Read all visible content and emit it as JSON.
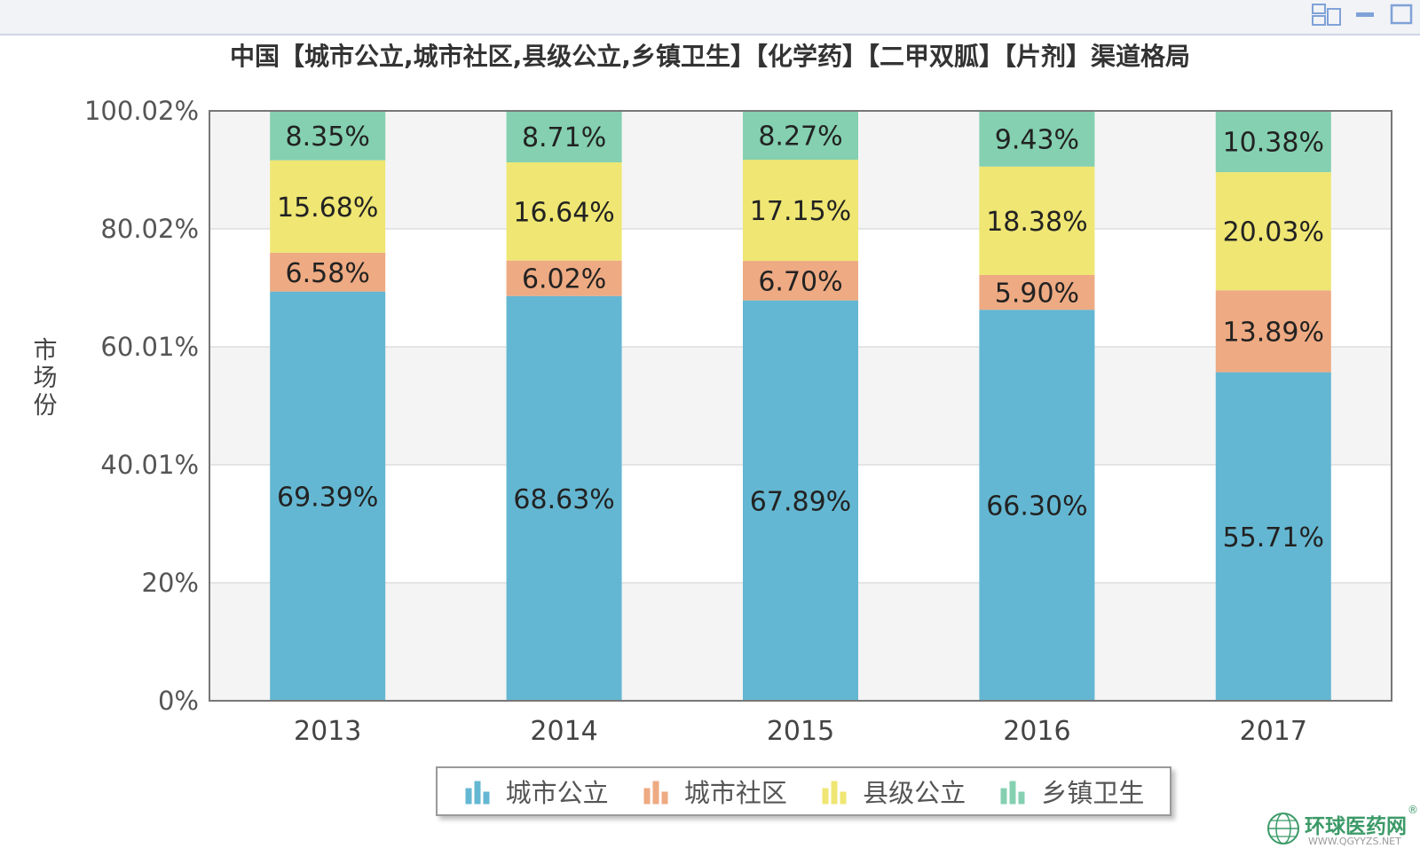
{
  "window": {
    "icons": [
      "window-layout-icon",
      "minimize-icon",
      "maximize-icon"
    ]
  },
  "chart_data": {
    "type": "bar",
    "stacked": true,
    "title": "中国【城市公立,城市社区,县级公立,乡镇卫生】【化学药】【二甲双胍】【片剂】渠道格局",
    "xlabel": "",
    "ylabel": "市场份",
    "ylim": [
      0,
      100.02
    ],
    "yticks": [
      "0%",
      "20%",
      "40.01%",
      "60.01%",
      "80.02%",
      "100.02%"
    ],
    "grid": true,
    "legend_position": "bottom",
    "categories": [
      "2013",
      "2014",
      "2015",
      "2016",
      "2017"
    ],
    "series": [
      {
        "name": "城市公立",
        "color": "#64b7d2",
        "values": [
          69.39,
          68.63,
          67.89,
          66.3,
          55.71
        ],
        "labels": [
          "69.39%",
          "68.63%",
          "67.89%",
          "66.30%",
          "55.71%"
        ]
      },
      {
        "name": "城市社区",
        "color": "#eeaa82",
        "values": [
          6.58,
          6.02,
          6.7,
          5.9,
          13.89
        ],
        "labels": [
          "6.58%",
          "6.02%",
          "6.70%",
          "5.90%",
          "13.89%"
        ]
      },
      {
        "name": "县级公立",
        "color": "#efe673",
        "values": [
          15.68,
          16.64,
          17.15,
          18.38,
          20.03
        ],
        "labels": [
          "15.68%",
          "16.64%",
          "17.15%",
          "18.38%",
          "20.03%"
        ]
      },
      {
        "name": "乡镇卫生",
        "color": "#84d0b1",
        "values": [
          8.35,
          8.71,
          8.27,
          9.43,
          10.38
        ],
        "labels": [
          "8.35%",
          "8.71%",
          "8.27%",
          "9.43%",
          "10.38%"
        ]
      }
    ]
  },
  "watermark": {
    "name": "环球医药网",
    "url": "WWW.QGYYZS.NET",
    "registered": "®",
    "color": "#3c9a68"
  }
}
